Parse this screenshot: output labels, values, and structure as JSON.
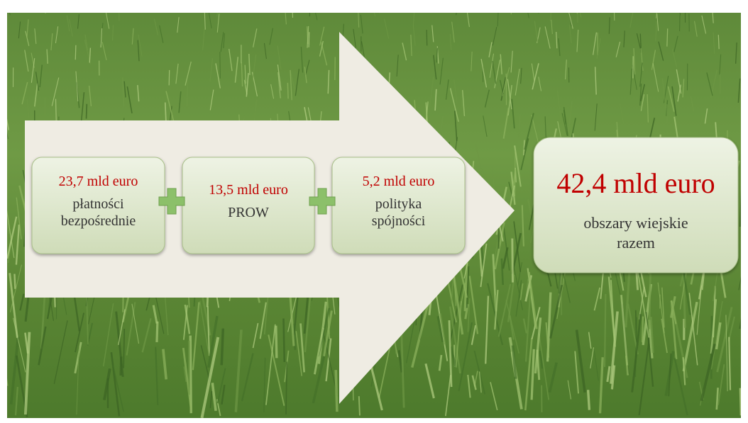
{
  "boxes": [
    {
      "amount": "23,7 mld euro",
      "label": [
        "płatności",
        "bezpośrednie"
      ]
    },
    {
      "amount": "13,5 mld euro",
      "label": [
        "PROW"
      ]
    },
    {
      "amount": "5,2 mld euro",
      "label": [
        "polityka",
        "spójności"
      ]
    }
  ],
  "total": {
    "amount": "42,4 mld euro",
    "label": [
      "obszary wiejskie",
      "razem"
    ]
  }
}
